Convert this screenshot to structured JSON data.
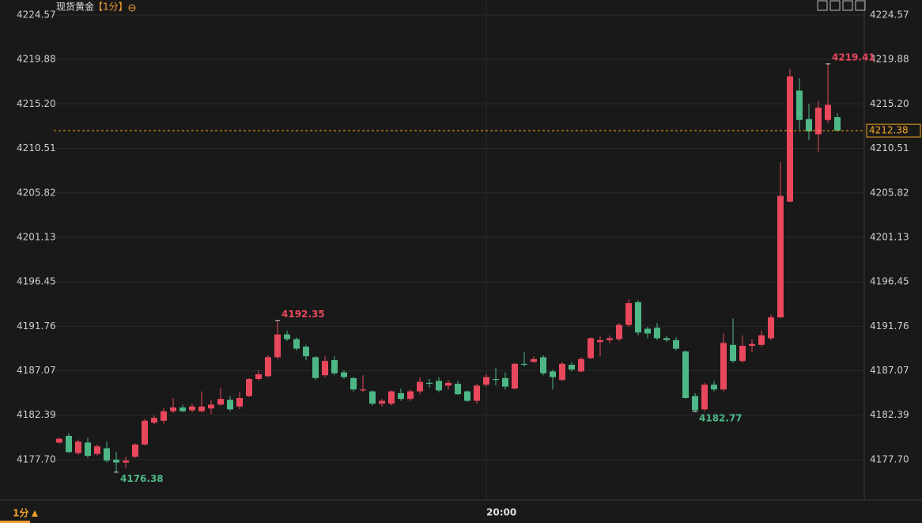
{
  "chart_data": {
    "type": "candlestick",
    "title": "现货黄金",
    "period": "【1分】",
    "timeframe": "1分",
    "up_color": "#e9485c",
    "down_color": "#4db886",
    "last_price": 4212.38,
    "last_price_color": "#f5a623",
    "ylim": [
      4173.44,
      4226.15
    ],
    "yticks": [
      4224.57,
      4219.88,
      {
        "value": 4215.2,
        "label": "4215.20"
      },
      4210.51,
      4205.82,
      4201.13,
      4196.45,
      4191.76,
      4187.07,
      4182.39,
      {
        "value": 4177.7,
        "label": "4177.70"
      }
    ],
    "grid": true,
    "markers": [
      4219.41,
      4192.35,
      4182.77,
      4176.38
    ],
    "categories": [
      null,
      null,
      null,
      null,
      null,
      null,
      null,
      null,
      null,
      null,
      null,
      null,
      null,
      null,
      null,
      null,
      null,
      null,
      null,
      null,
      null,
      null,
      null,
      null,
      null,
      null,
      null,
      null,
      null,
      null,
      null,
      null,
      null,
      null,
      null,
      null,
      null,
      null,
      null,
      null,
      null,
      null,
      null,
      null,
      null,
      "20:00",
      null,
      null,
      null,
      null,
      null,
      null,
      null,
      null,
      null,
      null,
      null,
      null,
      null,
      null,
      null,
      null,
      null,
      null,
      null,
      null,
      null,
      null,
      null,
      null,
      null,
      null,
      null,
      null,
      null,
      null,
      null,
      null,
      null,
      null,
      null,
      null,
      null
    ],
    "candles": [
      [
        4179.5,
        4180.0,
        4179.4,
        4179.9
      ],
      [
        4180.2,
        4180.5,
        4178.4,
        4178.5
      ],
      [
        4178.4,
        4179.8,
        4178.2,
        4179.6
      ],
      [
        4179.5,
        4180.0,
        4177.9,
        4178.1
      ],
      [
        4178.3,
        4179.3,
        4178.1,
        4179.1
      ],
      [
        4178.9,
        4179.6,
        4177.4,
        4177.6
      ],
      [
        4177.7,
        4178.5,
        4176.38,
        4177.4
      ],
      [
        4177.4,
        4178.0,
        4176.8,
        4177.6
      ],
      [
        4178.0,
        4179.4,
        4177.9,
        4179.3
      ],
      [
        4179.3,
        4182.0,
        4179.2,
        4181.8
      ],
      [
        4181.6,
        4182.4,
        4181.4,
        4182.1
      ],
      [
        4181.8,
        4183.1,
        4181.5,
        4182.8
      ],
      [
        4182.8,
        4184.2,
        4182.6,
        4183.2
      ],
      [
        4183.2,
        4183.5,
        4182.7,
        4182.8
      ],
      [
        4182.9,
        4183.6,
        4182.7,
        4183.3
      ],
      [
        4182.8,
        4184.9,
        4182.7,
        4183.3
      ],
      [
        4183.1,
        4184.0,
        4182.5,
        4183.5
      ],
      [
        4183.5,
        4185.3,
        4183.4,
        4184.1
      ],
      [
        4184.0,
        4184.4,
        4182.8,
        4183.0
      ],
      [
        4183.3,
        4184.8,
        4183.0,
        4184.2
      ],
      [
        4184.4,
        4186.3,
        4184.3,
        4186.2
      ],
      [
        4186.2,
        4187.1,
        4186.0,
        4186.7
      ],
      [
        4186.5,
        4188.7,
        4186.4,
        4188.5
      ],
      [
        4188.5,
        4192.35,
        4188.3,
        4190.9
      ],
      [
        4190.9,
        4191.3,
        4190.2,
        4190.4
      ],
      [
        4190.4,
        4190.6,
        4189.2,
        4189.4
      ],
      [
        4189.6,
        4189.8,
        4188.2,
        4188.6
      ],
      [
        4188.5,
        4188.6,
        4186.1,
        4186.3
      ],
      [
        4186.6,
        4188.6,
        4186.4,
        4188.1
      ],
      [
        4188.2,
        4188.6,
        4186.6,
        4186.8
      ],
      [
        4186.9,
        4187.1,
        4186.2,
        4186.4
      ],
      [
        4186.3,
        4186.4,
        4184.9,
        4185.1
      ],
      [
        4185.0,
        4186.6,
        4184.8,
        4185.1
      ],
      [
        4184.9,
        4185.0,
        4183.4,
        4183.6
      ],
      [
        4183.6,
        4184.1,
        4183.3,
        4183.9
      ],
      [
        4183.6,
        4185.0,
        4183.4,
        4184.9
      ],
      [
        4184.7,
        4185.2,
        4183.9,
        4184.1
      ],
      [
        4184.1,
        4185.1,
        4183.9,
        4184.9
      ],
      [
        4184.9,
        4186.4,
        4184.6,
        4185.9
      ],
      [
        4185.8,
        4186.2,
        4185.3,
        4185.7
      ],
      [
        4186.0,
        4186.4,
        4184.8,
        4185.0
      ],
      [
        4185.5,
        4186.1,
        4185.1,
        4185.8
      ],
      [
        4185.7,
        4186.0,
        4184.5,
        4184.6
      ],
      [
        4184.9,
        4185.0,
        4183.8,
        4183.9
      ],
      [
        4183.9,
        4185.7,
        4183.6,
        4185.5
      ],
      [
        4185.6,
        4186.7,
        4185.4,
        4186.4
      ],
      [
        4186.2,
        4187.4,
        4185.5,
        4186.1
      ],
      [
        4186.3,
        4186.9,
        4185.1,
        4185.4
      ],
      [
        4185.2,
        4187.9,
        4185.1,
        4187.8
      ],
      [
        4187.8,
        4189.0,
        4187.5,
        4187.7
      ],
      [
        4188.0,
        4188.6,
        4187.9,
        4188.3
      ],
      [
        4188.5,
        4188.7,
        4186.6,
        4186.8
      ],
      [
        4187.0,
        4187.2,
        4185.1,
        4186.4
      ],
      [
        4186.1,
        4188.0,
        4186.0,
        4187.8
      ],
      [
        4187.7,
        4188.0,
        4187.0,
        4187.2
      ],
      [
        4187.0,
        4188.5,
        4186.9,
        4188.3
      ],
      [
        4188.4,
        4190.6,
        4188.3,
        4190.5
      ],
      [
        4190.1,
        4190.7,
        4188.6,
        4190.3
      ],
      [
        4190.3,
        4190.8,
        4190.0,
        4190.5
      ],
      [
        4190.4,
        4192.1,
        4190.2,
        4191.9
      ],
      [
        4191.9,
        4194.6,
        4191.7,
        4194.2
      ],
      [
        4194.3,
        4194.5,
        4190.8,
        4191.1
      ],
      [
        4191.5,
        4191.7,
        4190.5,
        4191.0
      ],
      [
        4191.6,
        4192.1,
        4190.3,
        4190.5
      ],
      [
        4190.5,
        4190.7,
        4190.1,
        4190.3
      ],
      [
        4190.3,
        4190.6,
        4189.2,
        4189.4
      ],
      [
        4189.1,
        4189.2,
        4184.1,
        4184.2
      ],
      [
        4184.4,
        4184.7,
        4182.77,
        4182.9
      ],
      [
        4183.0,
        4185.8,
        4182.8,
        4185.6
      ],
      [
        4185.6,
        4186.0,
        4184.9,
        4185.1
      ],
      [
        4185.1,
        4191.0,
        4184.9,
        4190.0
      ],
      [
        4189.8,
        4192.6,
        4187.9,
        4188.1
      ],
      [
        4188.1,
        4190.8,
        4187.9,
        4189.7
      ],
      [
        4189.7,
        4190.4,
        4189.0,
        4189.9
      ],
      [
        4189.8,
        4191.3,
        4189.6,
        4190.8
      ],
      [
        4190.5,
        4193.0,
        4190.3,
        4192.7
      ],
      [
        4192.7,
        4209.1,
        4192.6,
        4205.5
      ],
      [
        4204.9,
        4218.9,
        4204.8,
        4218.1
      ],
      [
        4216.6,
        4217.9,
        4212.5,
        4213.5
      ],
      [
        4213.6,
        4215.2,
        4211.4,
        4212.3
      ],
      [
        4212.0,
        4215.5,
        4210.1,
        4214.8
      ],
      [
        4213.5,
        4219.41,
        4213.2,
        4215.1
      ],
      [
        4213.8,
        4214.2,
        4212.3,
        4212.38
      ]
    ]
  }
}
